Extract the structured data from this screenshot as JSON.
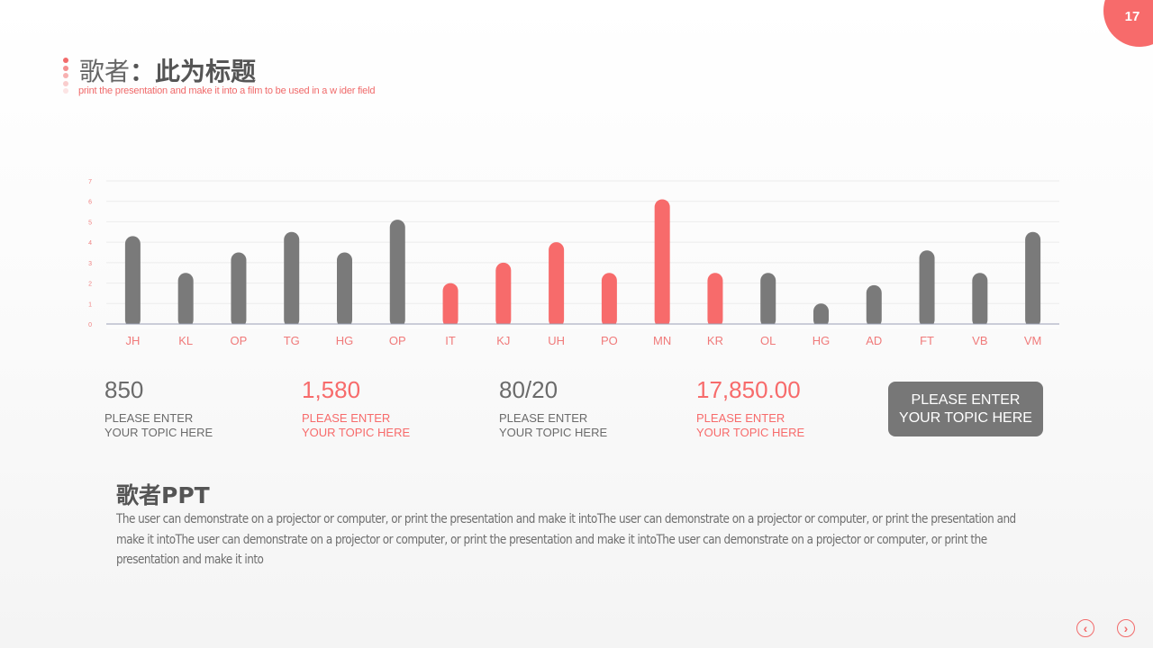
{
  "page_number": "17",
  "header": {
    "title_part1": "歌者",
    "title_sep": "：",
    "title_part2": "此为标题",
    "subtitle": "print  the  presentation  and  make  it  into  a  film  to be used  in  a w ider  field"
  },
  "colors": {
    "accent": "#f76b6b",
    "gray": "#7a7a7a",
    "dots": [
      "#f26b6b",
      "#f49090",
      "#f7b1b1",
      "#f9cdcd",
      "#fce4e4"
    ]
  },
  "chart_data": {
    "type": "bar",
    "categories": [
      "JH",
      "KL",
      "OP",
      "TG",
      "HG",
      "OP",
      "IT",
      "KJ",
      "UH",
      "PO",
      "MN",
      "KR",
      "OL",
      "HG",
      "AD",
      "FT",
      "VB",
      "VM"
    ],
    "values": [
      4.3,
      2.5,
      3.5,
      4.5,
      3.5,
      5.1,
      2.0,
      3.0,
      4.0,
      2.5,
      6.1,
      2.5,
      2.5,
      1.0,
      1.9,
      3.6,
      2.5,
      4.5
    ],
    "highlight": [
      false,
      false,
      false,
      false,
      false,
      false,
      true,
      true,
      true,
      true,
      true,
      true,
      false,
      false,
      false,
      false,
      false,
      false
    ],
    "ylim": [
      0,
      7
    ],
    "yticks": [
      0,
      1,
      2,
      3,
      4,
      5,
      6,
      7
    ],
    "grid": true
  },
  "stats": [
    {
      "value": "850",
      "label": "PLEASE ENTER\nYOUR TOPIC HERE",
      "highlight": false
    },
    {
      "value": "1,580",
      "label": "PLEASE ENTER\nYOUR TOPIC HERE",
      "highlight": true
    },
    {
      "value": "80/20",
      "label": "PLEASE ENTER\nYOUR TOPIC HERE",
      "highlight": false
    },
    {
      "value": "17,850.00",
      "label": "PLEASE ENTER\nYOUR TOPIC HERE",
      "highlight": true
    }
  ],
  "topic_button": "PLEASE ENTER\nYOUR TOPIC HERE",
  "body": {
    "title": "歌者PPT",
    "text": "The user can demonstrate  on a projector  or computer,  or print  the presentation  and make it intoThe  user can demonstrate  on a projector  or computer,  or print  the presentation  and make it intoThe  user can demonstrate  on a projector  or computer,  or print  the presentation  and make it intoThe  user can demonstrate on a projector  or computer,  or print  the presentation and make it into"
  },
  "nav": {
    "prev_icon": "chevron-left-icon",
    "next_icon": "chevron-right-icon",
    "prev": "‹",
    "next": "›"
  }
}
